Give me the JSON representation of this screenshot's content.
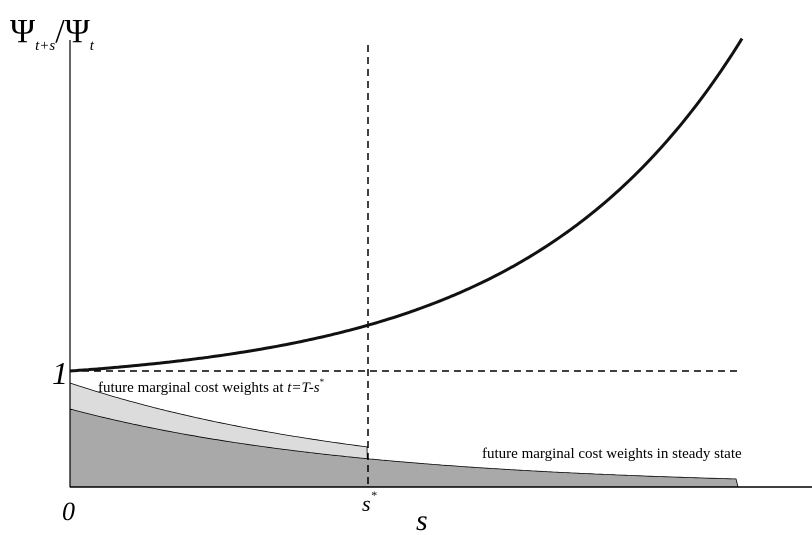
{
  "labels": {
    "y_axis": {
      "psi_left": "Ψ",
      "sub_left": "t+s",
      "slash": "/",
      "psi_right": "Ψ",
      "sub_right": "t"
    },
    "one": "1",
    "origin": "0",
    "s_star": "s",
    "s_star_sup": "*",
    "s_axis": "s",
    "weights_at_t_prefix": "future marginal cost weights at ",
    "weights_at_t_eq": "t=T-s",
    "weights_at_t_sup": "*",
    "weights_steady": "future marginal cost weights in steady state"
  },
  "colors": {
    "axis": "#000000",
    "curve": "#111111",
    "light_area": "#dcdcdc",
    "dark_area": "#a9a9a9"
  }
}
